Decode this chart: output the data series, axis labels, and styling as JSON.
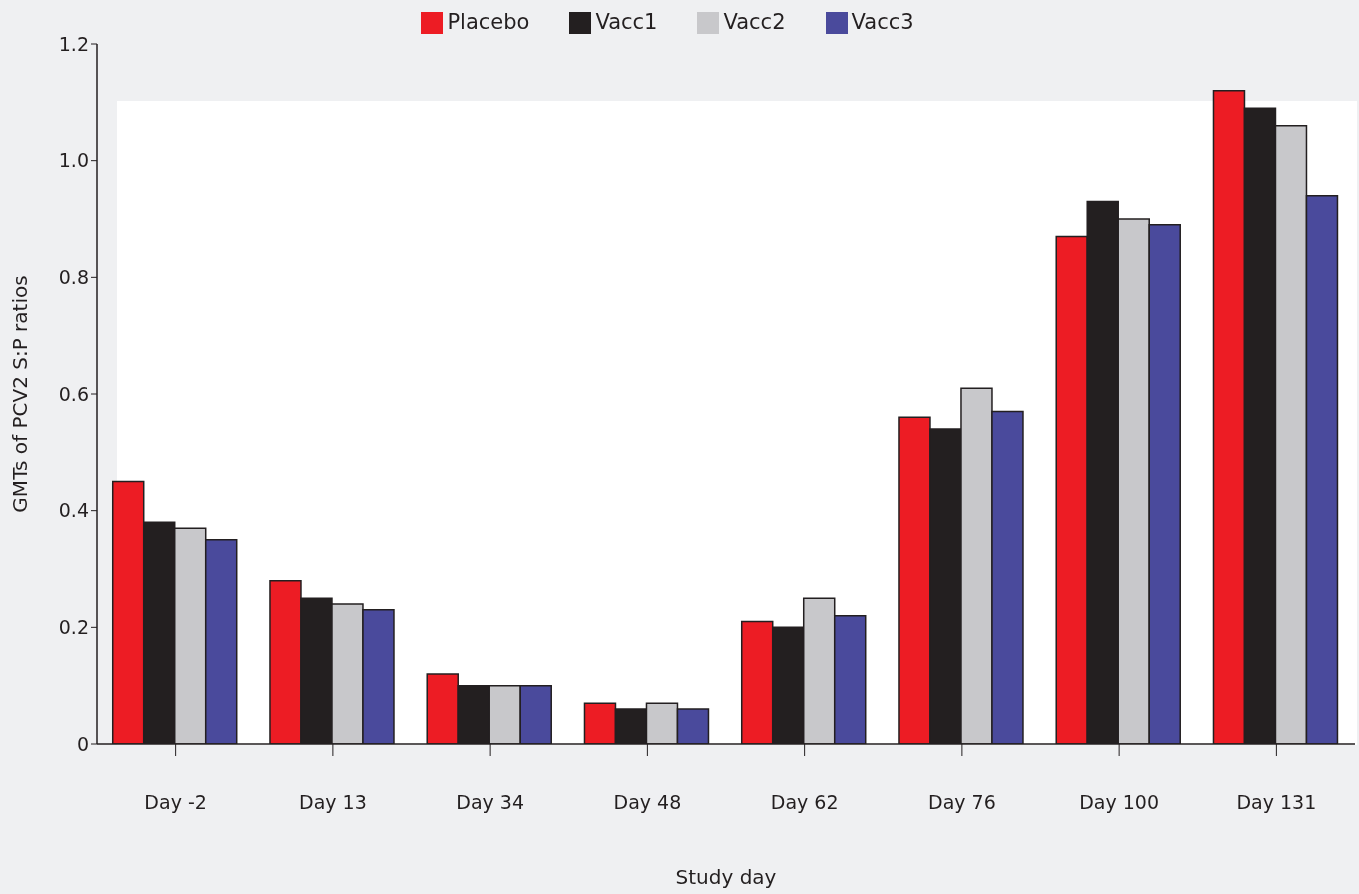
{
  "chart_data": {
    "type": "bar",
    "categories": [
      "Day -2",
      "Day 13",
      "Day 34",
      "Day 48",
      "Day 62",
      "Day 76",
      "Day 100",
      "Day 131"
    ],
    "series": [
      {
        "name": "Placebo",
        "color": "#ed1c24",
        "values": [
          0.45,
          0.28,
          0.12,
          0.07,
          0.21,
          0.56,
          0.87,
          1.12
        ]
      },
      {
        "name": "Vacc1",
        "color": "#231f20",
        "values": [
          0.38,
          0.25,
          0.1,
          0.06,
          0.2,
          0.54,
          0.93,
          1.09
        ]
      },
      {
        "name": "Vacc2",
        "color": "#c8c8cb",
        "values": [
          0.37,
          0.24,
          0.1,
          0.07,
          0.25,
          0.61,
          0.9,
          1.06
        ]
      },
      {
        "name": "Vacc3",
        "color": "#4a4a9c",
        "values": [
          0.35,
          0.23,
          0.1,
          0.06,
          0.22,
          0.57,
          0.89,
          0.94
        ]
      }
    ],
    "xlabel": "Study day",
    "ylabel": "GMTs of PCV2 S:P ratios",
    "ylim": [
      0,
      1.2
    ],
    "yticks": [
      0,
      0.2,
      0.4,
      0.6,
      0.8,
      {
        "value": 1,
        "label": "1.0"
      },
      1.2
    ],
    "grid": false,
    "legend": "top"
  }
}
